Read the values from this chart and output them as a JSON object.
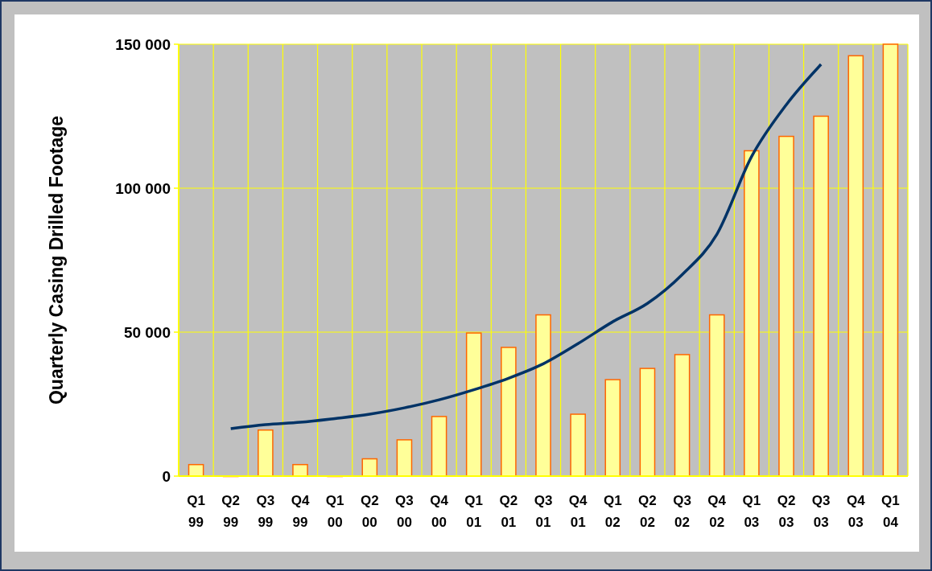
{
  "chart_data": {
    "type": "bar",
    "ylabel": "Quarterly Casing Drilled Footage",
    "categories": [
      "Q1 99",
      "Q2 99",
      "Q3 99",
      "Q4 99",
      "Q1 00",
      "Q2 00",
      "Q3 00",
      "Q4 00",
      "Q1 01",
      "Q2 01",
      "Q3 01",
      "Q4 01",
      "Q1 02",
      "Q2 02",
      "Q3 02",
      "Q4 02",
      "Q1 03",
      "Q2 03",
      "Q3 03",
      "Q4 03",
      "Q1 04"
    ],
    "series": [
      {
        "color": "#ffff99",
        "values": [
          4000,
          0,
          16000,
          4000,
          0,
          6000,
          12600,
          20700,
          49700,
          44700,
          56000,
          21500,
          33500,
          37400,
          42200,
          56000,
          113000,
          118000,
          125000,
          146000,
          150000
        ]
      },
      {
        "type": "line",
        "color": "#003366",
        "values": [
          null,
          16500,
          17900,
          18700,
          20000,
          21500,
          23700,
          26500,
          30000,
          34000,
          39000,
          46000,
          53600,
          60000,
          70000,
          84000,
          111000,
          129000,
          143000,
          null,
          null
        ]
      }
    ],
    "ylim": [
      0,
      150000
    ],
    "yticks": [
      {
        "value": 0,
        "label": "0"
      },
      {
        "value": 50000,
        "label": "50 000"
      },
      {
        "value": 100000,
        "label": "100 000"
      },
      {
        "value": 150000,
        "label": "150 000"
      }
    ],
    "grid": true,
    "marker": "none",
    "line_style": "solid"
  }
}
